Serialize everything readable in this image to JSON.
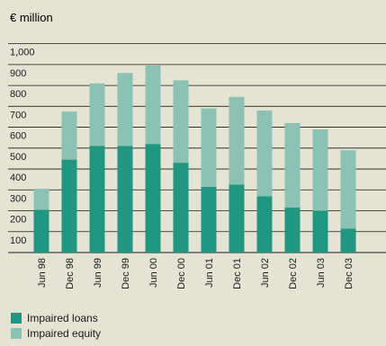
{
  "chart_data": {
    "type": "bar",
    "stacked": true,
    "unit_label": "€ million",
    "categories": [
      "Jun 98",
      "Dec 98",
      "Jun 99",
      "Dec 99",
      "Jun 00",
      "Dec 00",
      "Jun 01",
      "Dec 01",
      "Jun 02",
      "Dec 02",
      "Jun 03",
      "Dec 03"
    ],
    "series": [
      {
        "name": "Impaired loans",
        "color": "#219680",
        "values": [
          205,
          445,
          510,
          510,
          520,
          430,
          315,
          325,
          270,
          215,
          200,
          115
        ]
      },
      {
        "name": "Impaired equity",
        "color": "#8cc2b3",
        "values": [
          100,
          230,
          300,
          350,
          375,
          395,
          375,
          420,
          410,
          405,
          390,
          375
        ]
      }
    ],
    "y_ticks": [
      "1,000",
      "900",
      "800",
      "700",
      "600",
      "500",
      "400",
      "300",
      "200",
      "100"
    ],
    "ylim": [
      0,
      1050
    ],
    "grid": true,
    "legend_position": "bottom-left"
  }
}
